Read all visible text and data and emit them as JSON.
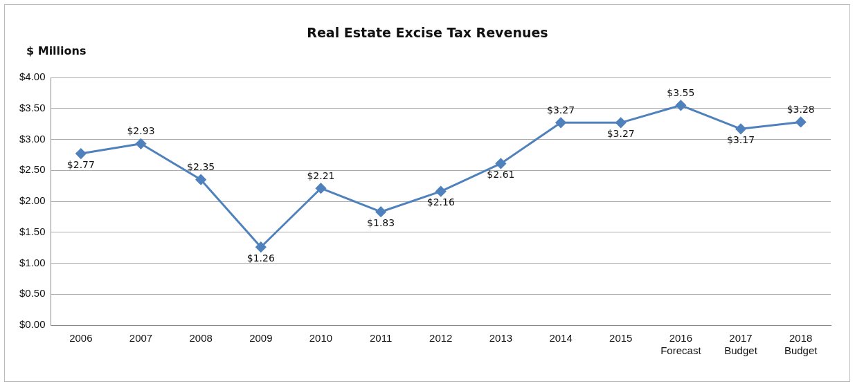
{
  "chart_data": {
    "type": "line",
    "title": "Real Estate Excise Tax Revenues",
    "ylabel": "$ Millions",
    "categories": [
      "2006",
      "2007",
      "2008",
      "2009",
      "2010",
      "2011",
      "2012",
      "2013",
      "2014",
      "2015",
      "2016\nForecast",
      "2017\nBudget",
      "2018\nBudget"
    ],
    "series": [
      {
        "color": "#4f81bd",
        "values": [
          2.77,
          2.93,
          2.35,
          1.26,
          2.21,
          1.83,
          2.16,
          2.61,
          3.27,
          3.27,
          3.55,
          3.17,
          3.28
        ],
        "value_labels": [
          "$2.77",
          "$2.93",
          "$2.35",
          "$1.26",
          "$2.21",
          "$1.83",
          "$2.16",
          "$2.61",
          "$3.27",
          "$3.27",
          "$3.55",
          "$3.17",
          "$3.28"
        ]
      }
    ],
    "ylim": [
      0,
      4
    ],
    "yticks": [
      {
        "value": 0,
        "label": "$0.00"
      },
      {
        "value": 0.5,
        "label": "$0.50"
      },
      {
        "value": 1,
        "label": "$1.00"
      },
      {
        "value": 1.5,
        "label": "$1.50"
      },
      {
        "value": 2,
        "label": "$2.00"
      },
      {
        "value": 2.5,
        "label": "$2.50"
      },
      {
        "value": 3,
        "label": "$3.00"
      },
      {
        "value": 3.5,
        "label": "$3.50"
      },
      {
        "value": 4,
        "label": "$4.00"
      }
    ],
    "grid": "y",
    "legend": false,
    "marker": "diamond",
    "line_style": "solid"
  }
}
